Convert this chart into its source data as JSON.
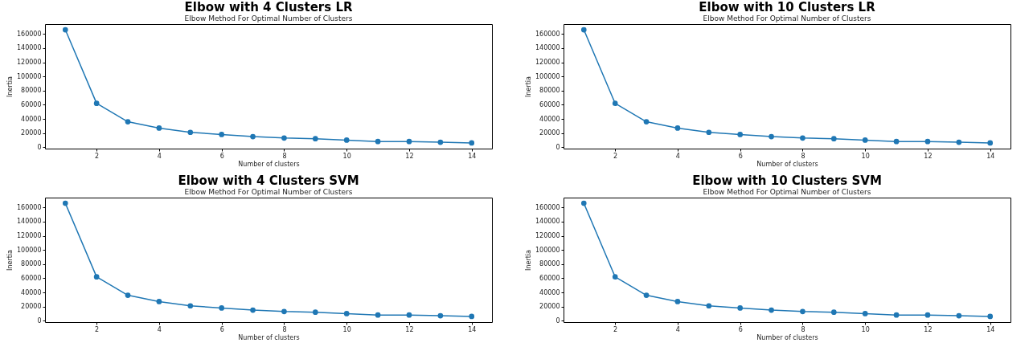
{
  "chart_data": [
    {
      "type": "line",
      "title": "Elbow with 4 Clusters LR",
      "subtitle": "Elbow Method For Optimal Number of Clusters",
      "xlabel": "Number of clusters",
      "ylabel": "Inertia",
      "x": [
        1,
        2,
        3,
        4,
        5,
        6,
        7,
        8,
        9,
        10,
        11,
        12,
        13,
        14
      ],
      "series": [
        {
          "color": "#1f77b4",
          "values": [
            166000,
            62000,
            36000,
            27000,
            21000,
            18000,
            15000,
            13000,
            12000,
            10000,
            8000,
            8000,
            7000,
            6000
          ]
        }
      ],
      "xlim": [
        0.35,
        14.65
      ],
      "ylim": [
        -2000,
        174000
      ],
      "xticks": [
        2,
        4,
        6,
        8,
        10,
        12,
        14
      ],
      "yticks": [
        0,
        20000,
        40000,
        60000,
        80000,
        100000,
        120000,
        140000,
        160000
      ],
      "grid": false,
      "marker": "circle"
    },
    {
      "type": "line",
      "title": "Elbow with 10 Clusters LR",
      "subtitle": "Elbow Method For Optimal Number of Clusters",
      "xlabel": "Number of clusters",
      "ylabel": "Inertia",
      "x": [
        1,
        2,
        3,
        4,
        5,
        6,
        7,
        8,
        9,
        10,
        11,
        12,
        13,
        14
      ],
      "series": [
        {
          "color": "#1f77b4",
          "values": [
            166000,
            62000,
            36000,
            27000,
            21000,
            18000,
            15000,
            13000,
            12000,
            10000,
            8000,
            8000,
            7000,
            6000
          ]
        }
      ],
      "xlim": [
        0.35,
        14.65
      ],
      "ylim": [
        -2000,
        174000
      ],
      "xticks": [
        2,
        4,
        6,
        8,
        10,
        12,
        14
      ],
      "yticks": [
        0,
        20000,
        40000,
        60000,
        80000,
        100000,
        120000,
        140000,
        160000
      ],
      "grid": false,
      "marker": "circle"
    },
    {
      "type": "line",
      "title": "Elbow with 4 Clusters SVM",
      "subtitle": "Elbow Method For Optimal Number of Clusters",
      "xlabel": "Number of clusters",
      "ylabel": "Inertia",
      "x": [
        1,
        2,
        3,
        4,
        5,
        6,
        7,
        8,
        9,
        10,
        11,
        12,
        13,
        14
      ],
      "series": [
        {
          "color": "#1f77b4",
          "values": [
            166000,
            62000,
            36000,
            27000,
            21000,
            18000,
            15000,
            13000,
            12000,
            10000,
            8000,
            8000,
            7000,
            6000
          ]
        }
      ],
      "xlim": [
        0.35,
        14.65
      ],
      "ylim": [
        -2000,
        174000
      ],
      "xticks": [
        2,
        4,
        6,
        8,
        10,
        12,
        14
      ],
      "yticks": [
        0,
        20000,
        40000,
        60000,
        80000,
        100000,
        120000,
        140000,
        160000
      ],
      "grid": false,
      "marker": "circle"
    },
    {
      "type": "line",
      "title": "Elbow with 10 Clusters SVM",
      "subtitle": "Elbow Method For Optimal Number of Clusters",
      "xlabel": "Number of clusters",
      "ylabel": "Inertia",
      "x": [
        1,
        2,
        3,
        4,
        5,
        6,
        7,
        8,
        9,
        10,
        11,
        12,
        13,
        14
      ],
      "series": [
        {
          "color": "#1f77b4",
          "values": [
            166000,
            62000,
            36000,
            27000,
            21000,
            18000,
            15000,
            13000,
            12000,
            10000,
            8000,
            8000,
            7000,
            6000
          ]
        }
      ],
      "xlim": [
        0.35,
        14.65
      ],
      "ylim": [
        -2000,
        174000
      ],
      "xticks": [
        2,
        4,
        6,
        8,
        10,
        12,
        14
      ],
      "yticks": [
        0,
        20000,
        40000,
        60000,
        80000,
        100000,
        120000,
        140000,
        160000
      ],
      "grid": false,
      "marker": "circle"
    }
  ]
}
